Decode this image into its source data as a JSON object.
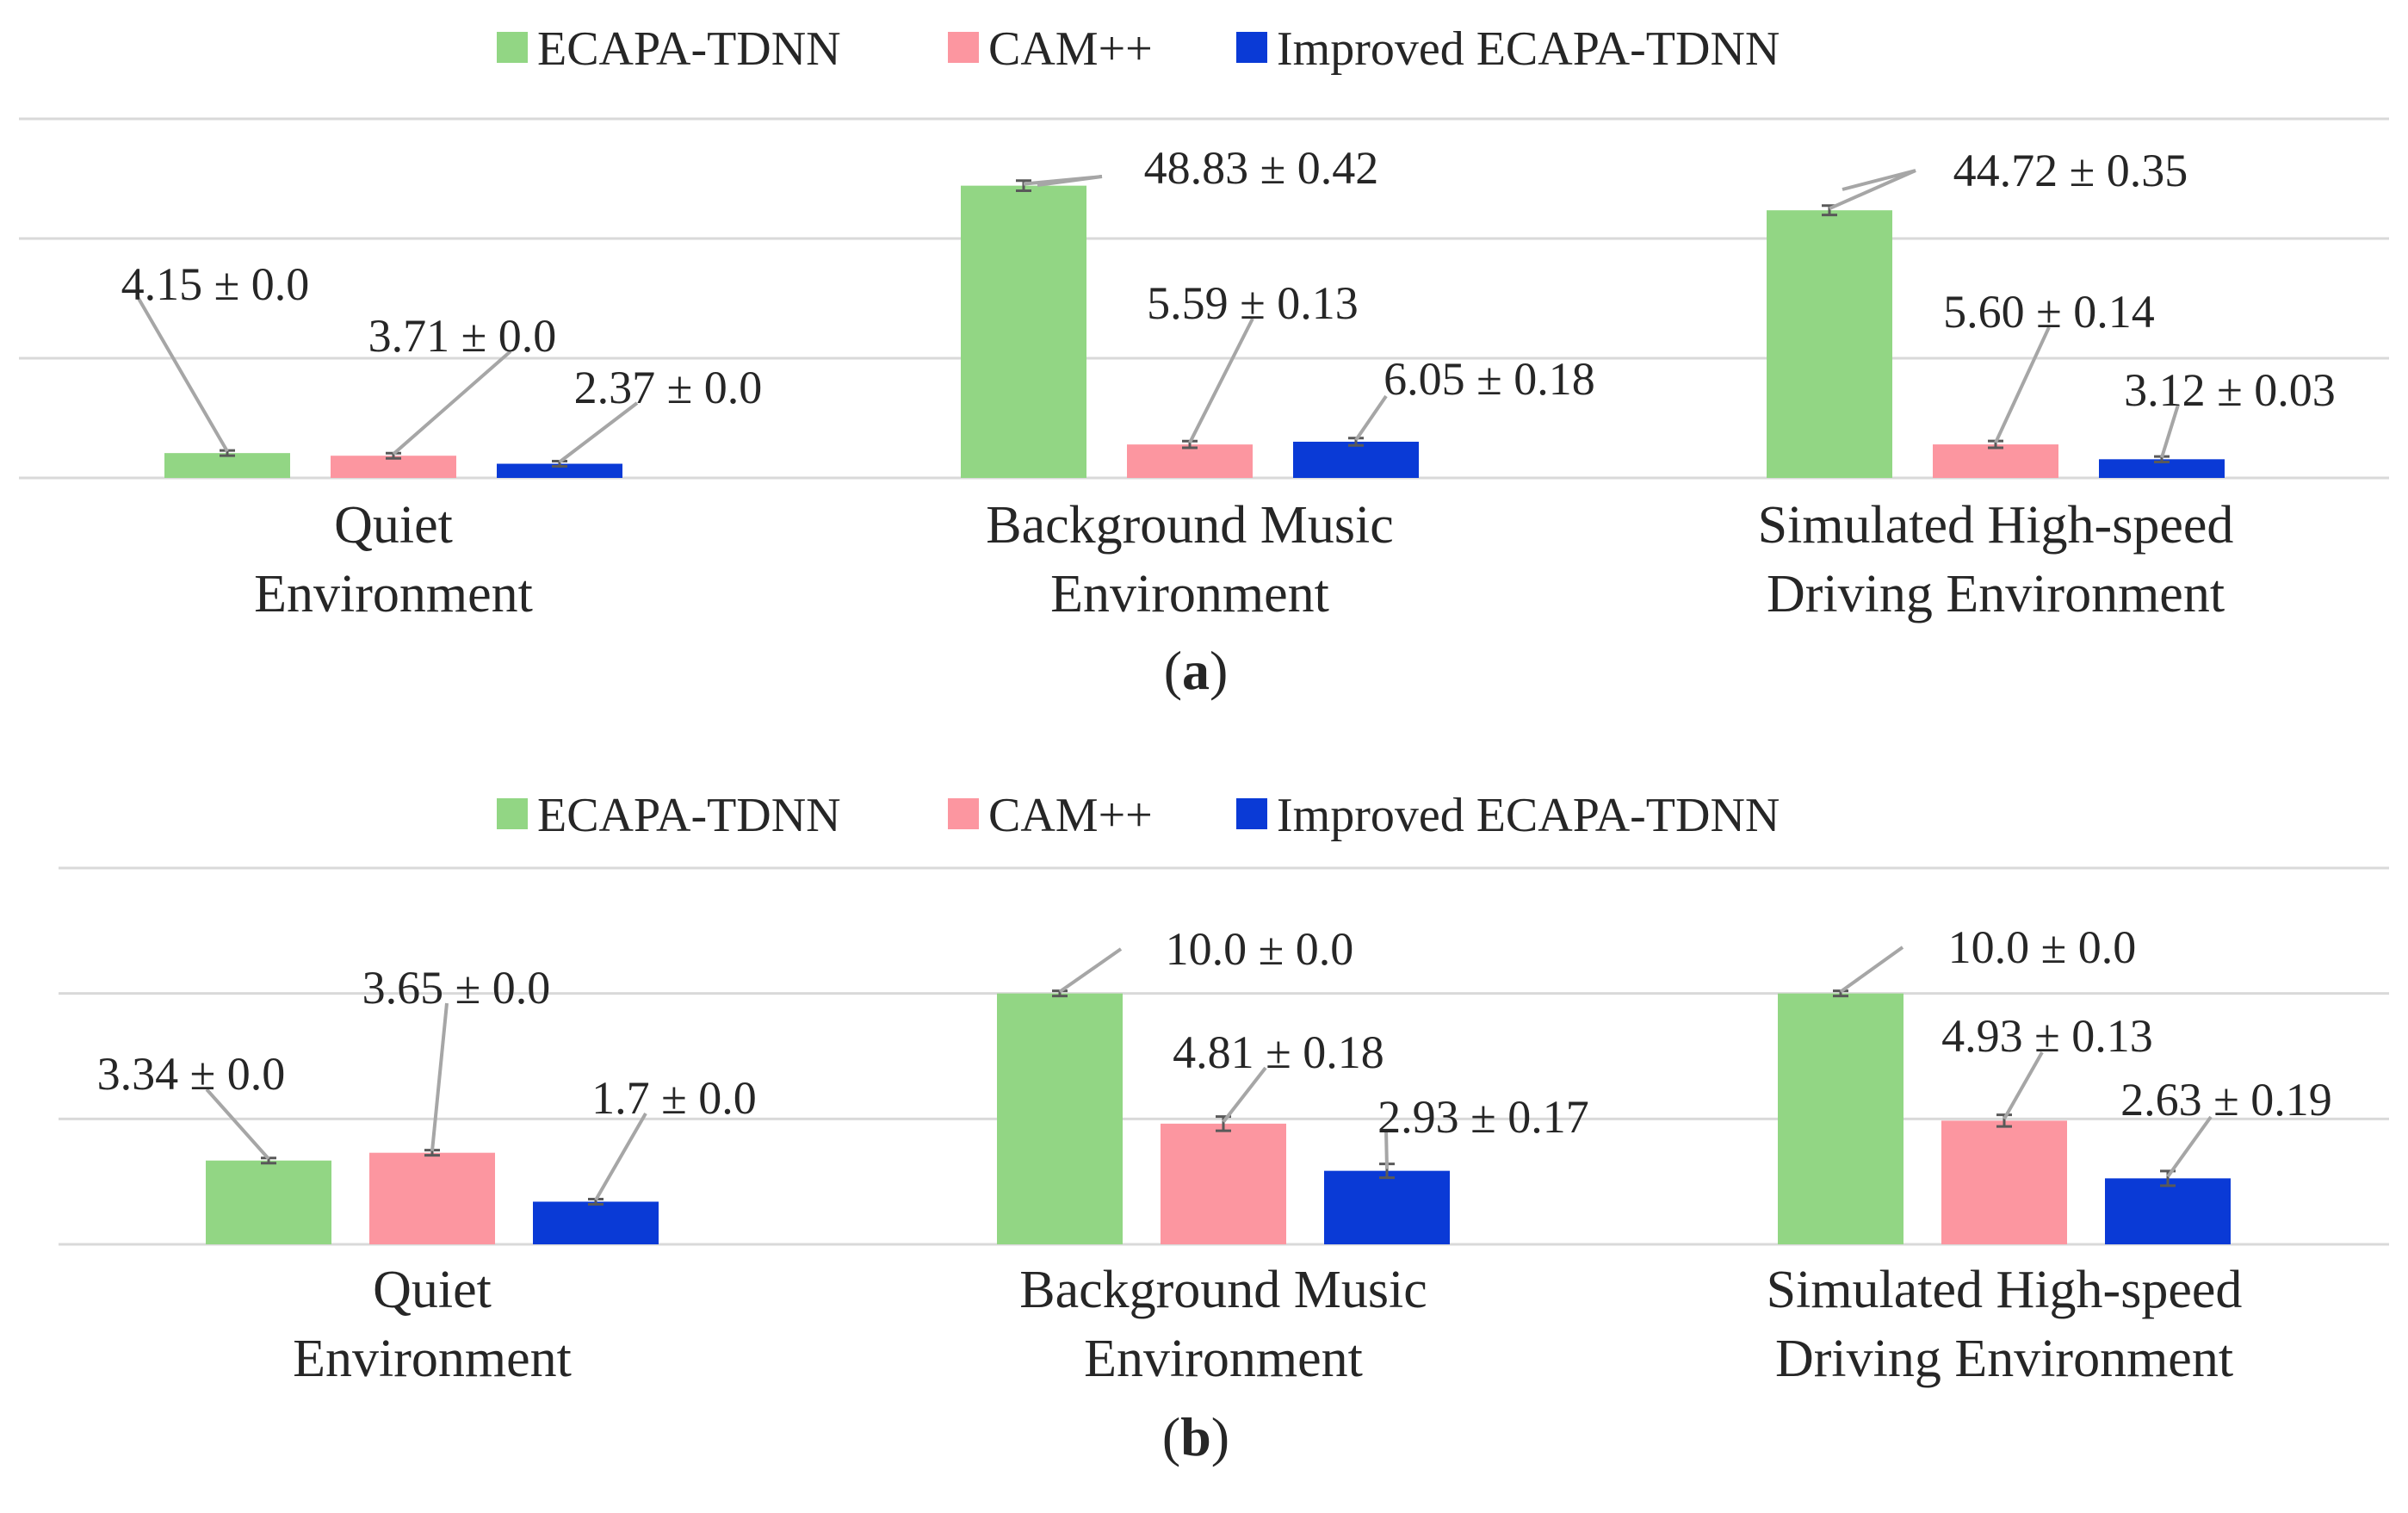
{
  "colors": {
    "ECAPA-TDNN": "#92d684",
    "CAM++": "#fc96a0",
    "Improved ECAPA-TDNN": "#0a3ad6",
    "grid": "#d9d9d9",
    "leader": "#a6a6a6"
  },
  "chart_data": [
    {
      "panel_label": "a",
      "type": "bar",
      "legend": [
        "ECAPA-TDNN",
        "CAM++",
        "Improved ECAPA-TDNN"
      ],
      "legend_position": "top-center",
      "grid": true,
      "ylim": [
        0,
        60
      ],
      "y_gridlines": [
        0,
        20,
        40,
        60
      ],
      "categories": [
        [
          "Quiet",
          "Environment"
        ],
        [
          "Background Music",
          "Environment"
        ],
        [
          "Simulated High-speed",
          "Driving Environment"
        ]
      ],
      "series": [
        {
          "name": "ECAPA-TDNN",
          "values": [
            4.15,
            48.83,
            44.72
          ],
          "errors": [
            0.0,
            0.42,
            0.35
          ],
          "labels": [
            "4.15 ± 0.0",
            "48.83 ± 0.42",
            "44.72 ± 0.35"
          ]
        },
        {
          "name": "CAM++",
          "values": [
            3.71,
            5.59,
            5.6
          ],
          "errors": [
            0.0,
            0.13,
            0.14
          ],
          "labels": [
            "3.71 ± 0.0",
            "5.59 ± 0.13",
            "5.60 ± 0.14"
          ]
        },
        {
          "name": "Improved ECAPA-TDNN",
          "values": [
            2.37,
            6.05,
            3.12
          ],
          "errors": [
            0.0,
            0.18,
            0.03
          ],
          "labels": [
            "2.37 ± 0.0",
            "6.05 ± 0.18",
            "3.12 ± 0.03"
          ]
        }
      ]
    },
    {
      "panel_label": "b",
      "type": "bar",
      "legend": [
        "ECAPA-TDNN",
        "CAM++",
        "Improved ECAPA-TDNN"
      ],
      "legend_position": "top-center",
      "grid": true,
      "ylim": [
        0,
        15
      ],
      "y_gridlines": [
        0,
        5,
        10,
        15
      ],
      "categories": [
        [
          "Quiet",
          "Environment"
        ],
        [
          "Background Music",
          "Environment"
        ],
        [
          "Simulated High-speed",
          "Driving Environment"
        ]
      ],
      "series": [
        {
          "name": "ECAPA-TDNN",
          "values": [
            3.34,
            10.0,
            10.0
          ],
          "errors": [
            0.0,
            0.0,
            0.0
          ],
          "labels": [
            "3.34 ± 0.0",
            "10.0 ± 0.0",
            "10.0 ± 0.0"
          ]
        },
        {
          "name": "CAM++",
          "values": [
            3.65,
            4.81,
            4.93
          ],
          "errors": [
            0.0,
            0.18,
            0.13
          ],
          "labels": [
            "3.65 ± 0.0",
            "4.81 ± 0.18",
            "4.93 ± 0.13"
          ]
        },
        {
          "name": "Improved ECAPA-TDNN",
          "values": [
            1.7,
            2.93,
            2.63
          ],
          "errors": [
            0.0,
            0.17,
            0.19
          ],
          "labels": [
            "1.7 ± 0.0",
            "2.93 ± 0.17",
            "2.63 ± 0.19"
          ]
        }
      ]
    }
  ]
}
